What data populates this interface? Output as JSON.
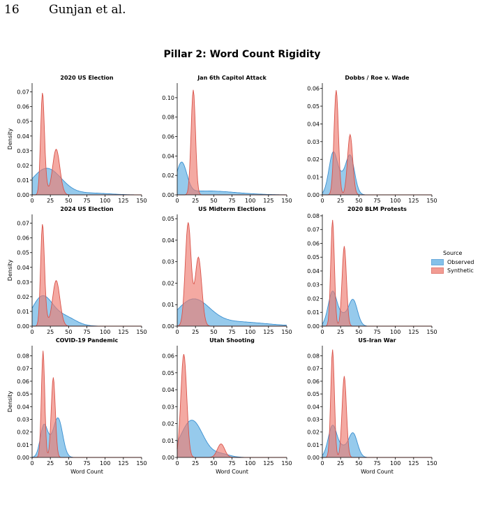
{
  "page": {
    "number": "16",
    "running_head": "Gunjan et al."
  },
  "figure": {
    "title": "Pillar 2: Word Count Rigidity"
  },
  "legend": {
    "title": "Source",
    "items": [
      {
        "label": "Observed",
        "color": "#5DADE2",
        "edge": "#3A8FD0"
      },
      {
        "label": "Synthetic",
        "color": "#EE7B70",
        "edge": "#D9534A"
      }
    ]
  },
  "chart_data": [
    {
      "type": "area",
      "title": "2020 US Election",
      "xlabel": "",
      "ylabel": "Density",
      "xlim": [
        0,
        150
      ],
      "ylim": [
        0,
        0.076
      ],
      "xticks": [
        0,
        25,
        50,
        75,
        100,
        125,
        150
      ],
      "yticks": [
        0.0,
        0.01,
        0.02,
        0.03,
        0.04,
        0.05,
        0.06,
        0.07
      ],
      "series": [
        {
          "name": "Observed",
          "peaks": [
            [
              20,
              20,
              0.018
            ],
            [
              80,
              25,
              0.0012
            ]
          ]
        },
        {
          "name": "Synthetic",
          "peaks": [
            [
              14,
              2.5,
              0.062
            ],
            [
              17,
              3,
              0.012
            ],
            [
              33,
              5,
              0.031
            ]
          ]
        }
      ]
    },
    {
      "type": "area",
      "title": "Jan 6th Capitol Attack",
      "xlabel": "",
      "ylabel": "",
      "xlim": [
        0,
        150
      ],
      "ylim": [
        0,
        0.115
      ],
      "xticks": [
        0,
        25,
        50,
        75,
        100,
        125,
        150
      ],
      "yticks": [
        0.0,
        0.02,
        0.04,
        0.06,
        0.08,
        0.1
      ],
      "series": [
        {
          "name": "Observed",
          "peaks": [
            [
              6,
              7,
              0.031
            ],
            [
              40,
              40,
              0.004
            ]
          ]
        },
        {
          "name": "Synthetic",
          "peaks": [
            [
              22,
              3,
              0.108
            ]
          ]
        }
      ]
    },
    {
      "type": "area",
      "title": "Dobbs / Roe v. Wade",
      "xlabel": "",
      "ylabel": "",
      "xlim": [
        0,
        150
      ],
      "ylim": [
        0,
        0.063
      ],
      "xticks": [
        0,
        25,
        50,
        75,
        100,
        125,
        150
      ],
      "yticks": [
        0.0,
        0.01,
        0.02,
        0.03,
        0.04,
        0.05,
        0.06
      ],
      "series": [
        {
          "name": "Observed",
          "peaks": [
            [
              15,
              6,
              0.024
            ],
            [
              38,
              6,
              0.022
            ],
            [
              27,
              5,
              0.006
            ]
          ]
        },
        {
          "name": "Synthetic",
          "peaks": [
            [
              19,
              3,
              0.059
            ],
            [
              38,
              3.5,
              0.034
            ]
          ]
        }
      ]
    },
    {
      "type": "area",
      "title": "2024 US Election",
      "xlabel": "",
      "ylabel": "Density",
      "xlim": [
        0,
        150
      ],
      "ylim": [
        0,
        0.076
      ],
      "xticks": [
        0,
        25,
        50,
        75,
        100,
        125,
        150
      ],
      "yticks": [
        0.0,
        0.01,
        0.02,
        0.03,
        0.04,
        0.05,
        0.06,
        0.07
      ],
      "series": [
        {
          "name": "Observed",
          "peaks": [
            [
              14,
              14,
              0.02
            ],
            [
              45,
              15,
              0.006
            ]
          ]
        },
        {
          "name": "Synthetic",
          "peaks": [
            [
              14,
              2.5,
              0.062
            ],
            [
              17,
              3,
              0.012
            ],
            [
              33,
              5,
              0.031
            ]
          ]
        }
      ]
    },
    {
      "type": "area",
      "title": "US Midterm Elections",
      "xlabel": "",
      "ylabel": "",
      "xlim": [
        0,
        150
      ],
      "ylim": [
        0,
        0.052
      ],
      "xticks": [
        0,
        25,
        50,
        75,
        100,
        125,
        150
      ],
      "yticks": [
        0.0,
        0.01,
        0.02,
        0.03,
        0.04,
        0.05
      ],
      "series": [
        {
          "name": "Observed",
          "peaks": [
            [
              22,
              22,
              0.012
            ],
            [
              80,
              40,
              0.002
            ]
          ]
        },
        {
          "name": "Synthetic",
          "peaks": [
            [
              15,
              4,
              0.048
            ],
            [
              29,
              4.5,
              0.032
            ]
          ]
        }
      ]
    },
    {
      "type": "area",
      "title": "2020 BLM Protests",
      "xlabel": "",
      "ylabel": "",
      "xlim": [
        0,
        150
      ],
      "ylim": [
        0,
        0.081
      ],
      "xticks": [
        0,
        25,
        50,
        75,
        100,
        125,
        150
      ],
      "yticks": [
        0.0,
        0.01,
        0.02,
        0.03,
        0.04,
        0.05,
        0.06,
        0.07,
        0.08
      ],
      "series": [
        {
          "name": "Observed",
          "peaks": [
            [
              14,
              6,
              0.025
            ],
            [
              42,
              6,
              0.019
            ],
            [
              28,
              6,
              0.007
            ]
          ]
        },
        {
          "name": "Synthetic",
          "peaks": [
            [
              14,
              2.5,
              0.077
            ],
            [
              30,
              3,
              0.058
            ]
          ]
        }
      ]
    },
    {
      "type": "area",
      "title": "COVID-19 Pandemic",
      "xlabel": "Word Count",
      "ylabel": "Density",
      "xlim": [
        0,
        150
      ],
      "ylim": [
        0,
        0.088
      ],
      "xticks": [
        0,
        25,
        50,
        75,
        100,
        125,
        150
      ],
      "yticks": [
        0.0,
        0.01,
        0.02,
        0.03,
        0.04,
        0.05,
        0.06,
        0.07,
        0.08
      ],
      "series": [
        {
          "name": "Observed",
          "peaks": [
            [
              16,
              5,
              0.024
            ],
            [
              36,
              6,
              0.029
            ],
            [
              26,
              6,
              0.008
            ]
          ]
        },
        {
          "name": "Synthetic",
          "peaks": [
            [
              15,
              2.3,
              0.084
            ],
            [
              29,
              2.8,
              0.063
            ]
          ]
        }
      ]
    },
    {
      "type": "area",
      "title": "Utah Shooting",
      "xlabel": "Word Count",
      "ylabel": "",
      "xlim": [
        0,
        150
      ],
      "ylim": [
        0,
        0.066
      ],
      "xticks": [
        0,
        25,
        50,
        75,
        100,
        125,
        150
      ],
      "yticks": [
        0.0,
        0.01,
        0.02,
        0.03,
        0.04,
        0.05,
        0.06
      ],
      "series": [
        {
          "name": "Observed",
          "peaks": [
            [
              20,
              15,
              0.022
            ],
            [
              60,
              12,
              0.002
            ]
          ]
        },
        {
          "name": "Synthetic",
          "peaks": [
            [
              9,
              4,
              0.061
            ],
            [
              60,
              5,
              0.008
            ]
          ]
        }
      ]
    },
    {
      "type": "area",
      "title": "US-Iran War",
      "xlabel": "Word Count",
      "ylabel": "",
      "xlim": [
        0,
        150
      ],
      "ylim": [
        0,
        0.088
      ],
      "xticks": [
        0,
        25,
        50,
        75,
        100,
        125,
        150
      ],
      "yticks": [
        0.0,
        0.01,
        0.02,
        0.03,
        0.04,
        0.05,
        0.06,
        0.07,
        0.08
      ],
      "series": [
        {
          "name": "Observed",
          "peaks": [
            [
              14,
              6,
              0.025
            ],
            [
              42,
              6,
              0.019
            ],
            [
              28,
              6,
              0.007
            ]
          ]
        },
        {
          "name": "Synthetic",
          "peaks": [
            [
              14,
              2.5,
              0.085
            ],
            [
              30,
              3,
              0.064
            ]
          ]
        }
      ]
    }
  ]
}
